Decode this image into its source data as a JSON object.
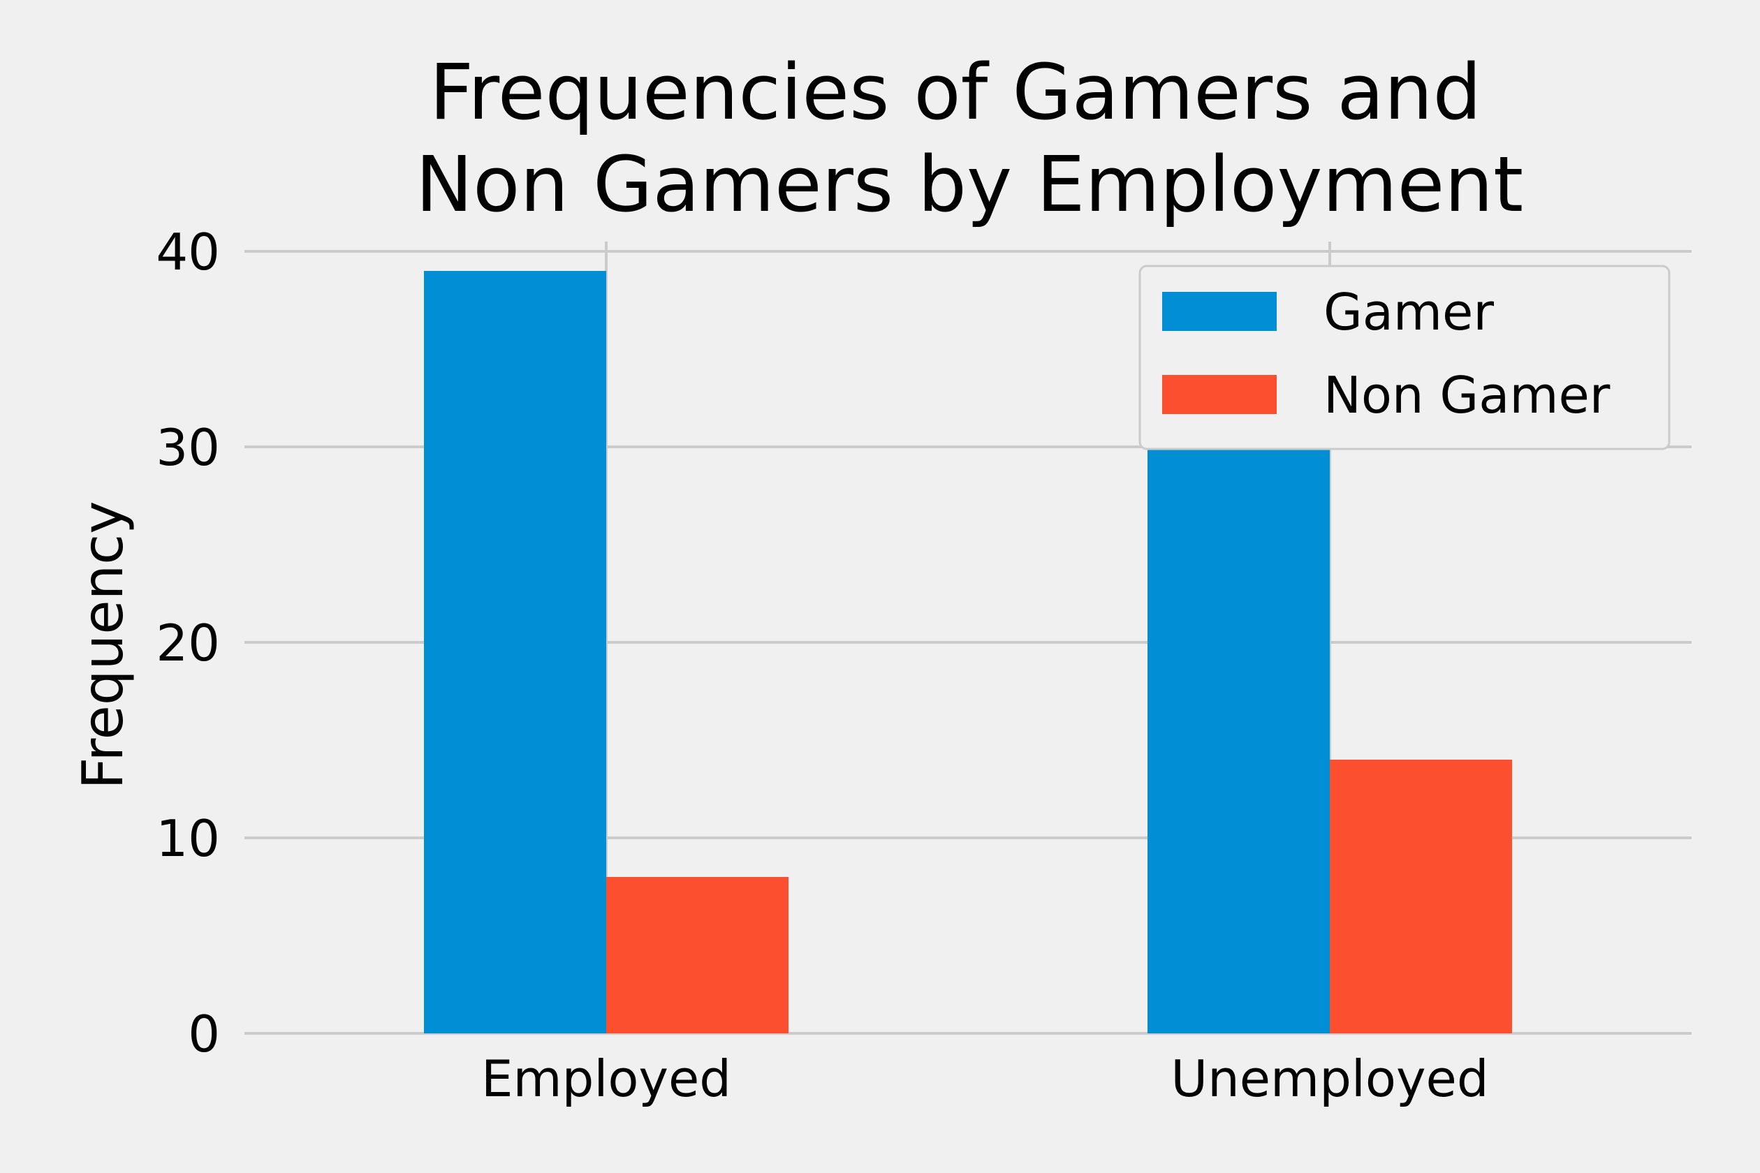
{
  "chart_data": {
    "type": "bar",
    "title": "Frequencies of Gamers and Non Gamers by Employment",
    "title_lines": [
      "Frequencies of Gamers and",
      "Non Gamers by Employment"
    ],
    "xlabel": "",
    "ylabel": "Frequency",
    "categories": [
      "Employed",
      "Unemployed"
    ],
    "series": [
      {
        "name": "Gamer",
        "values": [
          39,
          30
        ],
        "color": "#008fd5"
      },
      {
        "name": "Non Gamer",
        "values": [
          8,
          14
        ],
        "color": "#fc4f30"
      }
    ],
    "ylim": [
      0,
      40.5
    ],
    "yticks": [
      0,
      10,
      20,
      30,
      40
    ],
    "grid": true,
    "legend_position": "top-right",
    "background_color": "#f0f0f0",
    "grid_color": "#cbcbcb"
  }
}
